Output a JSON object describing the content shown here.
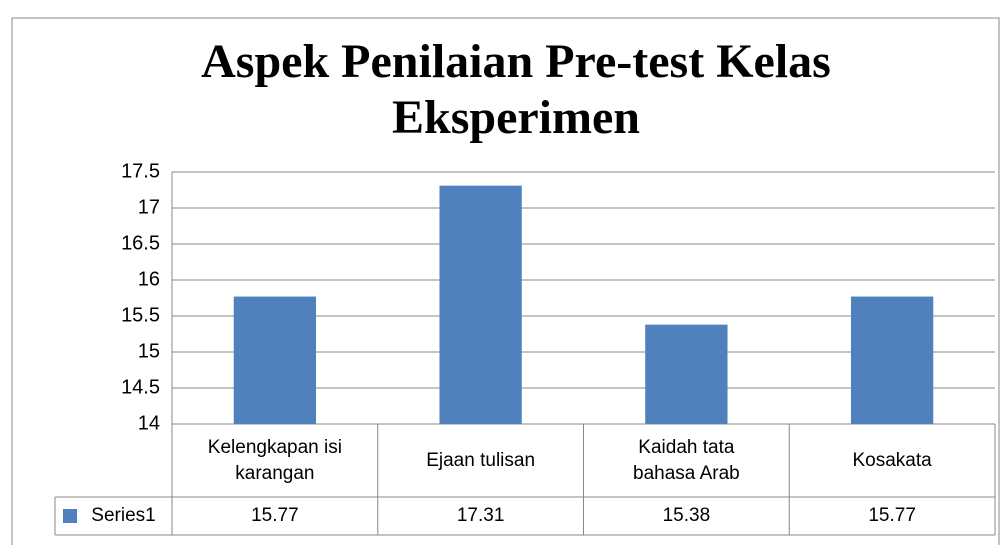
{
  "chart_data": {
    "type": "bar",
    "title": "Aspek Penilaian Pre-test Kelas Eksperimen",
    "categories": [
      "Kelengkapan isi karangan",
      "Ejaan tulisan",
      "Kaidah tata bahasa Arab",
      "Kosakata"
    ],
    "series": [
      {
        "name": "Series1",
        "color": "#4f81bd",
        "values": [
          15.77,
          17.31,
          15.38,
          15.77
        ]
      }
    ],
    "ylim": [
      14,
      17.5
    ],
    "yticks": [
      14,
      14.5,
      15,
      15.5,
      16,
      16.5,
      17,
      17.5
    ],
    "grid": true
  }
}
